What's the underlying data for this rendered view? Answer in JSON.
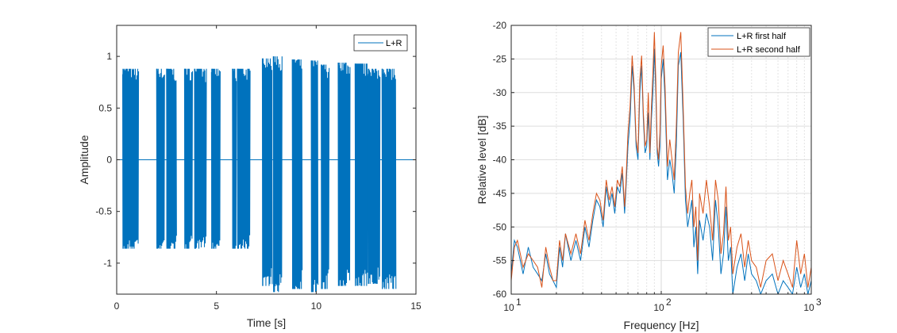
{
  "chart_data": [
    {
      "type": "line",
      "xlabel": "Time [s]",
      "ylabel": "Amplitude",
      "xlim": [
        0,
        15
      ],
      "ylim": [
        -1.3,
        1.3
      ],
      "xticks": [
        0,
        5,
        10,
        15
      ],
      "xtick_labels": [
        "0",
        "5",
        "10",
        "15"
      ],
      "yticks": [
        1,
        0.5,
        0,
        -0.5,
        -1
      ],
      "ytick_labels": [
        "1",
        "0.5",
        "0",
        "-0.5",
        "-1"
      ],
      "grid": false,
      "legend": {
        "location": "top-right",
        "entries": [
          "L+R"
        ]
      },
      "series": [
        {
          "name": "L+R",
          "color": "#0072BD",
          "signal_end_s": 15,
          "bursts": [
            {
              "start": 0.3,
              "end": 1.1,
              "peak": 0.88,
              "trough": -0.86
            },
            {
              "start": 2.0,
              "end": 2.4,
              "peak": 0.88,
              "trough": -0.86
            },
            {
              "start": 2.5,
              "end": 3.0,
              "peak": 0.88,
              "trough": -0.86
            },
            {
              "start": 3.4,
              "end": 3.8,
              "peak": 0.88,
              "trough": -0.86
            },
            {
              "start": 3.9,
              "end": 4.5,
              "peak": 0.88,
              "trough": -0.86
            },
            {
              "start": 4.75,
              "end": 5.2,
              "peak": 0.88,
              "trough": -0.86
            },
            {
              "start": 5.8,
              "end": 6.0,
              "peak": 0.88,
              "trough": -0.86
            },
            {
              "start": 6.05,
              "end": 6.7,
              "peak": 0.88,
              "trough": -0.86
            },
            {
              "start": 7.3,
              "end": 7.8,
              "peak": 0.98,
              "trough": -1.22
            },
            {
              "start": 7.85,
              "end": 8.3,
              "peak": 1.0,
              "trough": -1.28
            },
            {
              "start": 8.8,
              "end": 9.3,
              "peak": 0.97,
              "trough": -1.25
            },
            {
              "start": 9.75,
              "end": 10.1,
              "peak": 0.96,
              "trough": -1.28
            },
            {
              "start": 10.25,
              "end": 10.65,
              "peak": 0.92,
              "trough": -1.25
            },
            {
              "start": 11.1,
              "end": 11.7,
              "peak": 0.94,
              "trough": -1.22
            },
            {
              "start": 11.95,
              "end": 12.6,
              "peak": 0.93,
              "trough": -1.22
            },
            {
              "start": 12.6,
              "end": 13.2,
              "peak": 0.88,
              "trough": -1.2
            },
            {
              "start": 13.3,
              "end": 14.0,
              "peak": 0.88,
              "trough": -1.25
            }
          ]
        }
      ]
    },
    {
      "type": "line",
      "xlabel": "Frequency [Hz]",
      "ylabel": "Relative level [dB]",
      "xscale": "log",
      "xlim": [
        10,
        1000
      ],
      "ylim": [
        -60,
        -20
      ],
      "xticks": [
        10,
        100,
        1000
      ],
      "xtick_labels": [
        {
          "base": "10",
          "exp": "1"
        },
        {
          "base": "10",
          "exp": "2"
        },
        {
          "base": "10",
          "exp": "3"
        }
      ],
      "yticks": [
        -20,
        -25,
        -30,
        -35,
        -40,
        -45,
        -50,
        -55,
        -60
      ],
      "ytick_labels": [
        "-20",
        "-25",
        "-30",
        "-35",
        "-40",
        "-45",
        "-50",
        "-55",
        "-60"
      ],
      "grid": true,
      "legend": {
        "location": "top-right",
        "entries": [
          "L+R first half",
          "L+R second half"
        ]
      },
      "series": [
        {
          "name": "L+R first half",
          "color": "#0072BD",
          "x": [
            10,
            10.5,
            11,
            11.5,
            12,
            13,
            14,
            15,
            16,
            17,
            18,
            19,
            20,
            21,
            22,
            23,
            25,
            27,
            29,
            31,
            33,
            35,
            37,
            39,
            41,
            43,
            45,
            47,
            49,
            51,
            53,
            55,
            57,
            58,
            60,
            62,
            64,
            66,
            68,
            70,
            72,
            74,
            76,
            78,
            80,
            82,
            84,
            86,
            88,
            90,
            92,
            94,
            96,
            98,
            100,
            103,
            106,
            110,
            114,
            118,
            122,
            126,
            130,
            135,
            140,
            145,
            150,
            155,
            160,
            165,
            170,
            175,
            180,
            190,
            200,
            210,
            220,
            230,
            240,
            250,
            260,
            270,
            280,
            290,
            300,
            320,
            340,
            360,
            380,
            400,
            430,
            460,
            500,
            550,
            600,
            650,
            700,
            750,
            800,
            850,
            900,
            950,
            1000
          ],
          "y": [
            -57,
            -52,
            -53,
            -55,
            -57,
            -53,
            -56,
            -57,
            -58,
            -54,
            -57,
            -58,
            -59,
            -53,
            -56,
            -51,
            -55,
            -52,
            -55,
            -50,
            -53,
            -49,
            -46,
            -47,
            -50,
            -44,
            -47,
            -45,
            -48,
            -44,
            -45,
            -42,
            -48,
            -45,
            -38,
            -34,
            -26,
            -30,
            -38,
            -40,
            -30,
            -26,
            -34,
            -39,
            -38,
            -33,
            -40,
            -34,
            -30,
            -23.5,
            -30,
            -39,
            -41,
            -38,
            -28,
            -25,
            -31,
            -43,
            -40,
            -42,
            -45,
            -38,
            -26,
            -24,
            -34,
            -46,
            -50,
            -48,
            -46,
            -53,
            -50,
            -57,
            -49,
            -52,
            -48,
            -50,
            -55,
            -46,
            -50,
            -57,
            -54,
            -47,
            -55,
            -53,
            -60,
            -56,
            -54,
            -58,
            -54,
            -57,
            -58,
            -60,
            -58,
            -57,
            -60,
            -58,
            -59,
            -60,
            -56,
            -59,
            -57,
            -60,
            -58
          ]
        },
        {
          "name": "L+R second half",
          "color": "#D95319",
          "x": [
            10,
            10.5,
            11,
            11.5,
            12,
            13,
            14,
            15,
            16,
            17,
            18,
            19,
            20,
            21,
            22,
            23,
            25,
            27,
            29,
            31,
            33,
            35,
            37,
            39,
            41,
            43,
            45,
            47,
            49,
            51,
            53,
            55,
            57,
            58,
            60,
            62,
            64,
            66,
            68,
            70,
            72,
            74,
            76,
            78,
            80,
            82,
            84,
            86,
            88,
            90,
            92,
            94,
            96,
            98,
            100,
            103,
            106,
            110,
            114,
            118,
            122,
            126,
            130,
            135,
            140,
            145,
            150,
            155,
            160,
            165,
            170,
            175,
            180,
            190,
            200,
            210,
            220,
            230,
            240,
            250,
            260,
            270,
            280,
            290,
            300,
            320,
            340,
            360,
            380,
            400,
            430,
            460,
            500,
            550,
            600,
            650,
            700,
            750,
            800,
            850,
            900,
            950,
            1000
          ],
          "y": [
            -58,
            -53,
            -52,
            -54,
            -56,
            -54,
            -55,
            -56,
            -59,
            -53,
            -56,
            -58,
            -58,
            -52,
            -55,
            -51,
            -54,
            -51,
            -54,
            -49,
            -52,
            -48,
            -45,
            -46,
            -49,
            -43,
            -46,
            -44,
            -47,
            -43,
            -44,
            -41,
            -47,
            -44,
            -36,
            -32,
            -24.5,
            -29,
            -37,
            -39,
            -28,
            -24.5,
            -33,
            -38,
            -37,
            -30,
            -39,
            -32,
            -27,
            -21,
            -28,
            -38,
            -40,
            -36,
            -26,
            -23,
            -29,
            -41,
            -37,
            -40,
            -43,
            -35,
            -24,
            -21,
            -32,
            -44,
            -48,
            -45,
            -43,
            -50,
            -47,
            -55,
            -45,
            -48,
            -43,
            -47,
            -52,
            -43,
            -46,
            -54,
            -51,
            -44,
            -52,
            -50,
            -57,
            -53,
            -51,
            -56,
            -52,
            -55,
            -56,
            -59,
            -55,
            -54,
            -58,
            -55,
            -57,
            -59,
            -52,
            -57,
            -54,
            -59,
            -56
          ]
        }
      ]
    }
  ]
}
